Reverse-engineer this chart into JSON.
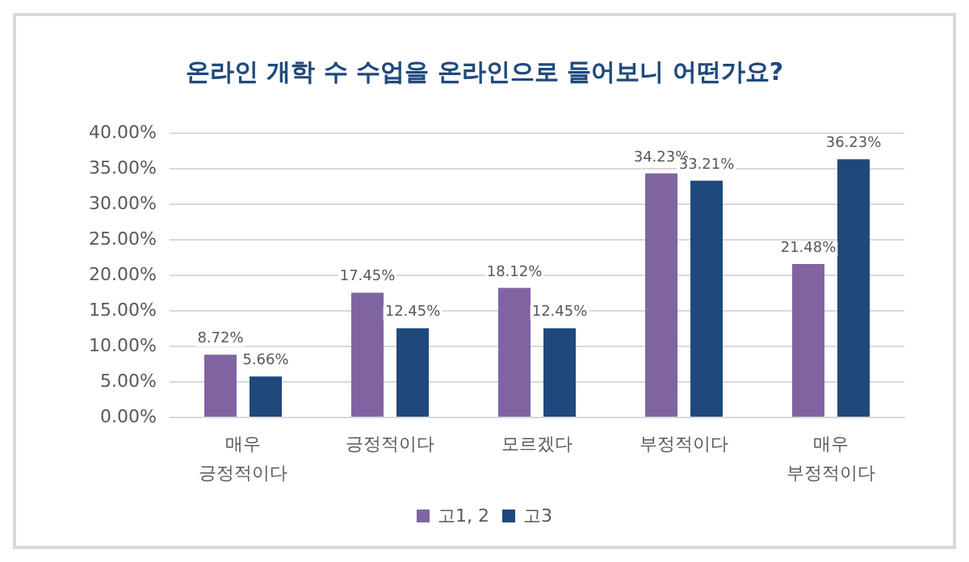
{
  "chart_data": {
    "type": "bar",
    "title": "온라인 개학 수 수업을 온라인으로 들어보니 어떤가요?",
    "categories": [
      "매우\n긍정적이다",
      "긍정적이다",
      "모르겠다",
      "부정적이다",
      "매우\n부정적이다"
    ],
    "series": [
      {
        "name": "고1, 2",
        "color": "#8064a2",
        "values": [
          8.72,
          17.45,
          18.12,
          34.23,
          21.48
        ],
        "value_labels": [
          "8.72%",
          "17.45%",
          "18.12%",
          "34.23%",
          "21.48%"
        ]
      },
      {
        "name": "고3",
        "color": "#1f497d",
        "values": [
          5.66,
          12.45,
          12.45,
          33.21,
          36.23
        ],
        "value_labels": [
          "5.66%",
          "12.45%",
          "12.45%",
          "33.21%",
          "36.23%"
        ]
      }
    ],
    "ylim": [
      0,
      40
    ],
    "yticks": [
      {
        "value": 0,
        "label": "0.00%"
      },
      {
        "value": 5,
        "label": "5.00%"
      },
      {
        "value": 10,
        "label": "10.00%"
      },
      {
        "value": 15,
        "label": "15.00%"
      },
      {
        "value": 20,
        "label": "20.00%"
      },
      {
        "value": 25,
        "label": "25.00%"
      },
      {
        "value": 30,
        "label": "30.00%"
      },
      {
        "value": 35,
        "label": "35.00%"
      },
      {
        "value": 40,
        "label": "40.00%"
      }
    ],
    "grid": "y",
    "legend": "bottom"
  }
}
